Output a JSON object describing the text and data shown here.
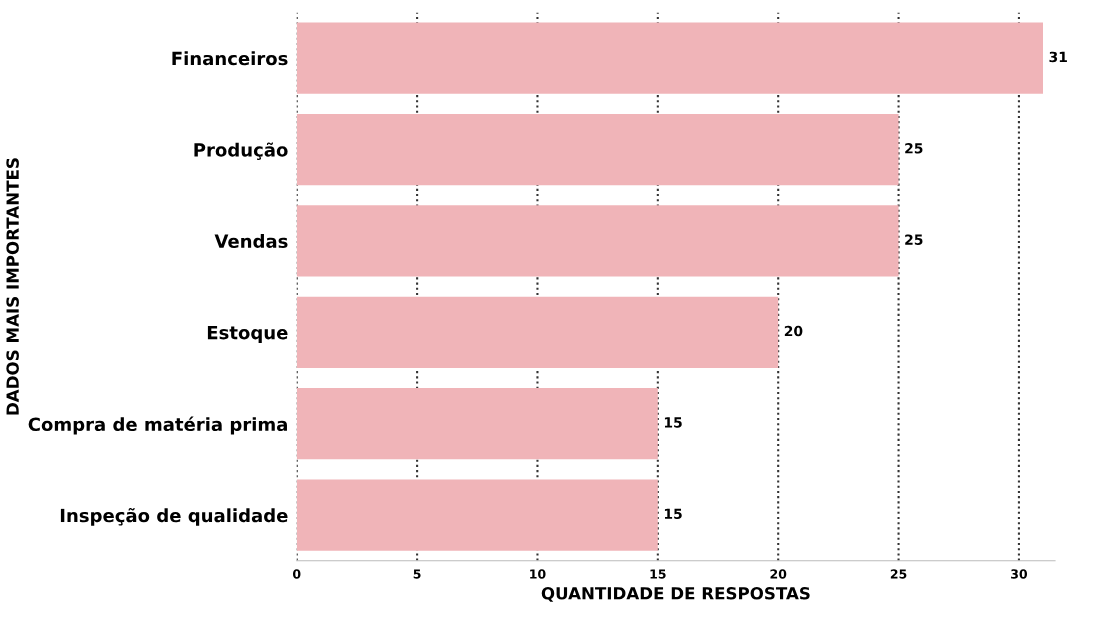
{
  "chart_data": {
    "type": "bar",
    "orientation": "horizontal",
    "categories": [
      "Financeiros",
      "Produção",
      "Vendas",
      "Estoque",
      "Compra de matéria prima",
      "Inspeção de qualidade"
    ],
    "values": [
      31,
      25,
      25,
      20,
      15,
      15
    ],
    "color": "#f0b4b8",
    "xlabel": "QUANTIDADE DE RESPOSTAS",
    "ylabel": "DADOS MAIS IMPORTANTES",
    "xlim": [
      0,
      31.5
    ],
    "xticks": [
      0,
      5,
      10,
      15,
      20,
      25,
      30
    ],
    "grid": "x",
    "data_labels": true
  }
}
